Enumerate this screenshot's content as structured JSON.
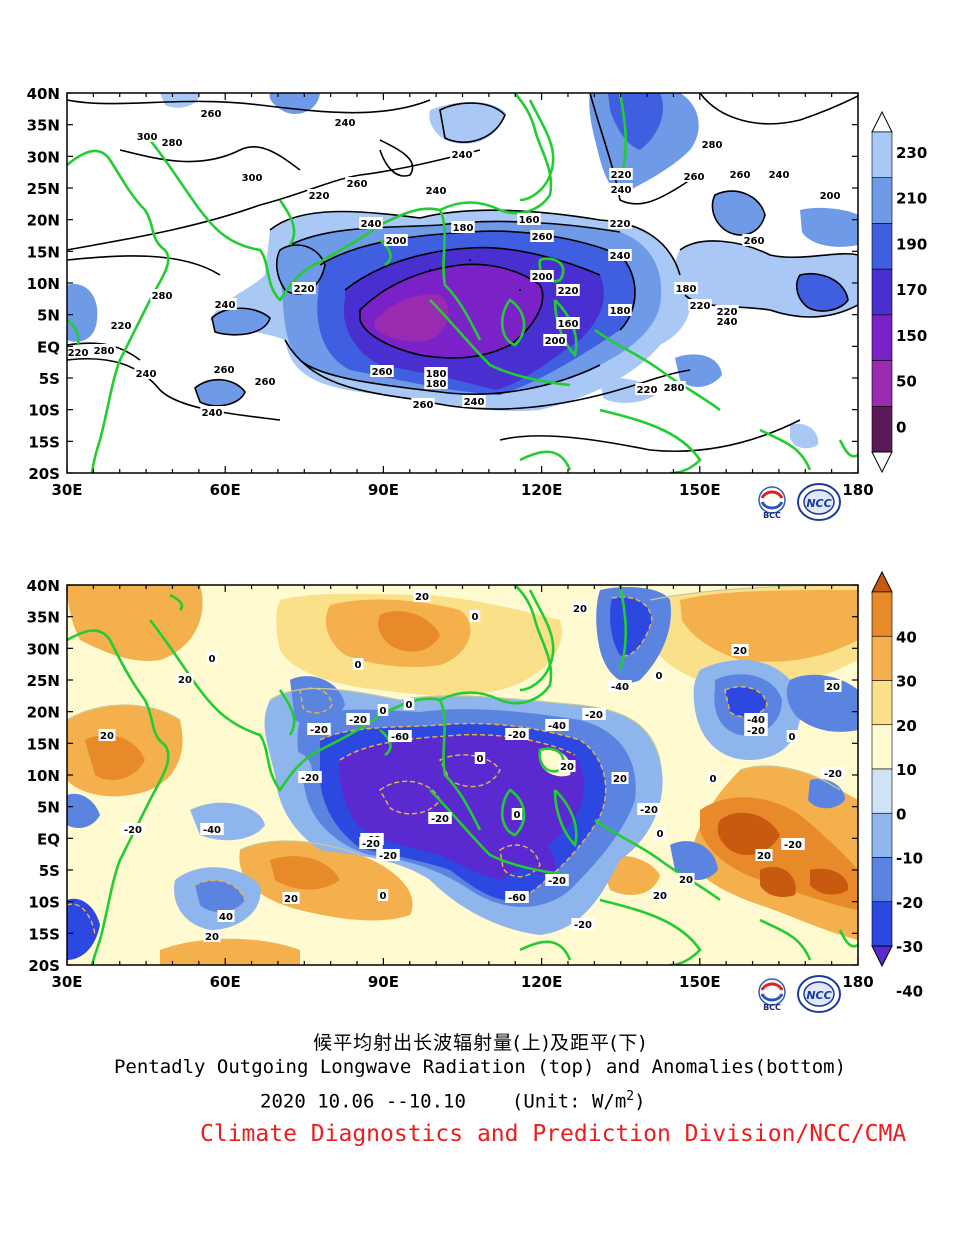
{
  "top_map": {
    "lat_labels": [
      "40N",
      "35N",
      "30N",
      "25N",
      "20N",
      "15N",
      "10N",
      "5N",
      "EQ",
      "5S",
      "10S",
      "15S",
      "20S"
    ],
    "lon_labels": [
      "30E",
      "60E",
      "90E",
      "120E",
      "150E",
      "180"
    ],
    "colorbar_labels": [
      "230",
      "210",
      "190",
      "170",
      "150",
      "50",
      "0"
    ],
    "colorbar_colors": [
      "#ffffff",
      "#a9c8f5",
      "#6f9ae8",
      "#3f5fe0",
      "#4a2fd0",
      "#7a22c8",
      "#9a2ab0",
      "#5a1a5a",
      "#ffffff"
    ],
    "contour_labels": [
      "260",
      "240",
      "300",
      "280",
      "240",
      "300",
      "260",
      "240",
      "220",
      "240",
      "200",
      "180",
      "160",
      "260",
      "220",
      "240",
      "200",
      "220",
      "160",
      "180",
      "200",
      "180",
      "220",
      "220",
      "240",
      "260",
      "280",
      "260",
      "240",
      "200",
      "220",
      "240",
      "260",
      "280",
      "240",
      "220",
      "220",
      "280",
      "240",
      "260",
      "220",
      "260",
      "180",
      "180",
      "260",
      "240",
      "260",
      "240",
      "220",
      "280"
    ]
  },
  "bottom_map": {
    "lat_labels": [
      "40N",
      "35N",
      "30N",
      "25N",
      "20N",
      "15N",
      "10N",
      "5N",
      "EQ",
      "5S",
      "10S",
      "15S",
      "20S"
    ],
    "lon_labels": [
      "30E",
      "60E",
      "90E",
      "120E",
      "150E",
      "180"
    ],
    "colorbar_labels": [
      "40",
      "30",
      "20",
      "10",
      "0",
      "-10",
      "-20",
      "-30",
      "-40"
    ],
    "colorbar_colors": [
      "#c85a10",
      "#e88a2a",
      "#f4b04c",
      "#fbe08a",
      "#fffad0",
      "#cfe3f7",
      "#8fb6ec",
      "#5a84e0",
      "#2c48e0",
      "#5a2ad0"
    ],
    "contour_labels": [
      "20",
      "20",
      "0",
      "0",
      "0",
      "20",
      "20",
      "-20",
      "0",
      "-20",
      "0",
      "-20",
      "-20",
      "-40",
      "-60",
      "-20",
      "-40",
      "0",
      "20",
      "20",
      "-40",
      "-20",
      "0",
      "0",
      "-20",
      "20",
      "0",
      "-20",
      "-60",
      "-20",
      "-20",
      "-40",
      "0",
      "-20",
      "20",
      "20",
      "20",
      "-20",
      "20",
      "0",
      "40",
      "20",
      "-60",
      "-20",
      "-20",
      "-20",
      "0",
      "20"
    ]
  },
  "captions": {
    "title_zh": "候平均射出长波辐射量(上)及距平(下)",
    "title_en": "Pentadly Outgoing Longwave Radiation (top) and Anomalies(bottom)",
    "date_range": "2020  10.06 --10.10",
    "unit_prefix": "(Unit: W/m",
    "unit_sup": "2",
    "unit_suffix": ")",
    "org": "Climate Diagnostics and Prediction Division/NCC/CMA"
  },
  "logos": {
    "bcc": "BCC",
    "ncc": "NCC"
  }
}
